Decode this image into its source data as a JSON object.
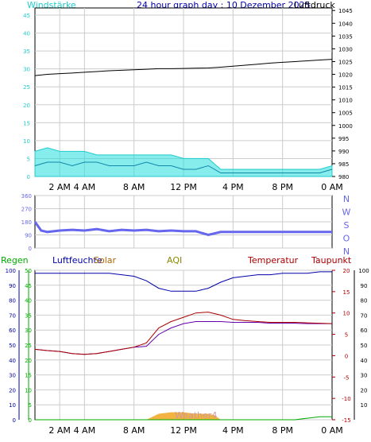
{
  "title": "24 hour graph day : 10 Dezember 2025",
  "colors": {
    "wind": "#22cccc",
    "gust_fill": "#22dddd",
    "pressure": "#000000",
    "direction": "#6666ee",
    "humidity": "#0000aa",
    "temperature": "#aa0000",
    "dewpoint": "#6600aa",
    "solar": "#ee9900",
    "rain": "#00aa00",
    "aqi": "#888800",
    "grid": "#cccccc"
  },
  "x_ticks": [
    "2 AM",
    "4 AM",
    "8 AM",
    "12 PM",
    "4 PM",
    "8 PM",
    "0 AM"
  ],
  "chart_data": [
    {
      "type": "line",
      "panel": "wind_pressure",
      "labels": {
        "left": "Windstärke",
        "right": "Luftdruck"
      },
      "y_left_ticks": [
        "0",
        "5",
        "10",
        "15",
        "20",
        "25",
        "30",
        "35",
        "40",
        "45"
      ],
      "y_left_range": [
        0,
        47
      ],
      "y_right_ticks": [
        "980",
        "985",
        "990",
        "995",
        "1000",
        "1005",
        "1010",
        "1015",
        "1020",
        "1025",
        "1030",
        "1035",
        "1040",
        "1045"
      ],
      "y_right_range": [
        980,
        1046
      ],
      "series": [
        {
          "name": "Luftdruck",
          "axis": "right",
          "x": [
            0,
            1,
            2,
            3,
            4,
            5,
            6,
            7,
            8,
            9,
            10,
            11,
            12,
            13,
            14,
            15,
            16,
            17,
            18,
            19,
            20,
            21,
            22,
            23,
            24
          ],
          "values": [
            1019.5,
            1020.0,
            1020.3,
            1020.5,
            1020.8,
            1021.1,
            1021.4,
            1021.6,
            1021.8,
            1022.0,
            1022.2,
            1022.2,
            1022.3,
            1022.4,
            1022.5,
            1022.8,
            1023.2,
            1023.6,
            1024.0,
            1024.4,
            1024.7,
            1025.0,
            1025.3,
            1025.6,
            1025.9
          ]
        },
        {
          "name": "Windstärke",
          "axis": "left",
          "x": [
            0,
            1,
            2,
            3,
            4,
            5,
            6,
            7,
            8,
            9,
            10,
            11,
            12,
            13,
            14,
            15,
            16,
            17,
            18,
            19,
            20,
            21,
            22,
            23,
            24
          ],
          "values": [
            3,
            4,
            4,
            3,
            4,
            4,
            3,
            3,
            3,
            4,
            3,
            3,
            2,
            2,
            3,
            1,
            1,
            1,
            1,
            1,
            1,
            1,
            1,
            1,
            2
          ]
        },
        {
          "name": "Böen",
          "axis": "left",
          "x": [
            0,
            1,
            2,
            3,
            4,
            5,
            6,
            7,
            8,
            9,
            10,
            11,
            12,
            13,
            14,
            15,
            16,
            17,
            18,
            19,
            20,
            21,
            22,
            23,
            24
          ],
          "values": [
            7,
            8,
            7,
            7,
            7,
            6,
            6,
            6,
            6,
            6,
            6,
            6,
            5,
            5,
            5,
            2,
            2,
            2,
            2,
            2,
            2,
            2,
            2,
            2,
            3
          ]
        }
      ]
    },
    {
      "type": "line",
      "panel": "wind_direction",
      "y_left_ticks": [
        "0",
        "90",
        "180",
        "270",
        "360"
      ],
      "y_range": [
        0,
        360
      ],
      "y_right_ticks": [
        "N",
        "W",
        "S",
        "O",
        "N"
      ],
      "series": [
        {
          "name": "Windrichtung",
          "x": [
            0,
            0.5,
            1,
            2,
            3,
            4,
            5,
            6,
            7,
            8,
            9,
            10,
            11,
            12,
            13,
            14,
            15,
            16,
            17,
            18,
            19,
            20,
            21,
            22,
            23,
            24
          ],
          "values": [
            180,
            120,
            110,
            120,
            125,
            120,
            130,
            115,
            125,
            120,
            125,
            115,
            120,
            115,
            115,
            90,
            110,
            110,
            110,
            110,
            110,
            110,
            110,
            110,
            110,
            110
          ]
        }
      ]
    },
    {
      "type": "line",
      "panel": "climate",
      "labels": [
        "Regen",
        "Luftfeuchte",
        "Solar",
        "AQI",
        "Temperatur",
        "Taupunkt"
      ],
      "y_left_ticks": [
        "0",
        "10",
        "20",
        "30",
        "40",
        "50",
        "60",
        "70",
        "80",
        "90",
        "100"
      ],
      "y_left_range": [
        0,
        100
      ],
      "y_mid_ticks": [
        "0",
        "5",
        "10",
        "15",
        "20",
        "25",
        "30",
        "35",
        "40",
        "45",
        "50"
      ],
      "y_temp_ticks": [
        "-15",
        "-10",
        "-5",
        "0",
        "5",
        "10",
        "15",
        "20"
      ],
      "y_temp_range": [
        -15,
        20
      ],
      "y_right_ticks": [
        "10",
        "20",
        "30",
        "40",
        "50",
        "60",
        "70",
        "80",
        "90",
        "100"
      ],
      "series": [
        {
          "name": "Luftfeuchte",
          "axis": "left",
          "x": [
            0,
            1,
            2,
            3,
            4,
            5,
            6,
            7,
            8,
            9,
            10,
            11,
            12,
            13,
            14,
            15,
            16,
            17,
            18,
            19,
            20,
            21,
            22,
            23,
            24
          ],
          "values": [
            98,
            98,
            98,
            98,
            98,
            98,
            98,
            97,
            96,
            93,
            88,
            86,
            86,
            86,
            88,
            92,
            95,
            96,
            97,
            97,
            98,
            98,
            98,
            99,
            99
          ]
        },
        {
          "name": "Temperatur",
          "axis": "temp",
          "x": [
            0,
            1,
            2,
            3,
            4,
            5,
            6,
            7,
            8,
            9,
            10,
            11,
            12,
            13,
            14,
            15,
            16,
            17,
            18,
            19,
            20,
            21,
            22,
            23,
            24
          ],
          "values": [
            1.5,
            1.2,
            1.0,
            0.5,
            0.3,
            0.5,
            1.0,
            1.5,
            2.0,
            3.0,
            6.5,
            8.0,
            9.0,
            10.0,
            10.2,
            9.5,
            8.5,
            8.2,
            8.0,
            7.8,
            7.8,
            7.8,
            7.7,
            7.6,
            7.5
          ]
        },
        {
          "name": "Taupunkt",
          "axis": "temp",
          "x": [
            0,
            1,
            2,
            3,
            4,
            5,
            6,
            7,
            8,
            9,
            10,
            11,
            12,
            13,
            14,
            15,
            16,
            17,
            18,
            19,
            20,
            21,
            22,
            23,
            24
          ],
          "values": [
            1.5,
            1.2,
            1.0,
            0.5,
            0.3,
            0.5,
            1.0,
            1.5,
            2.0,
            2.2,
            5.0,
            6.5,
            7.5,
            8.0,
            8.0,
            8.0,
            7.8,
            7.8,
            7.8,
            7.6,
            7.6,
            7.6,
            7.5,
            7.5,
            7.5
          ]
        },
        {
          "name": "Solar",
          "axis": "left",
          "x": [
            0,
            9,
            9.5,
            10,
            11,
            12,
            13,
            14,
            14.5,
            15,
            16,
            17,
            18,
            19,
            20,
            21,
            22,
            23,
            24
          ],
          "values": [
            0,
            0,
            2,
            4,
            5,
            5,
            4,
            4,
            3,
            0,
            0,
            0,
            0,
            0,
            0,
            0,
            0,
            0,
            0
          ]
        },
        {
          "name": "Regen",
          "axis": "left",
          "x": [
            0,
            1,
            2,
            3,
            4,
            5,
            6,
            7,
            8,
            9,
            10,
            11,
            12,
            13,
            14,
            15,
            16,
            17,
            18,
            19,
            20,
            21,
            22,
            23,
            24
          ],
          "values": [
            0,
            0,
            0,
            0,
            0,
            0,
            0,
            0,
            0,
            0,
            0,
            0,
            0,
            0,
            0,
            0,
            0,
            0,
            0,
            0,
            0,
            0,
            1,
            2,
            2
          ]
        }
      ]
    }
  ],
  "overlay_text": "Weather4"
}
